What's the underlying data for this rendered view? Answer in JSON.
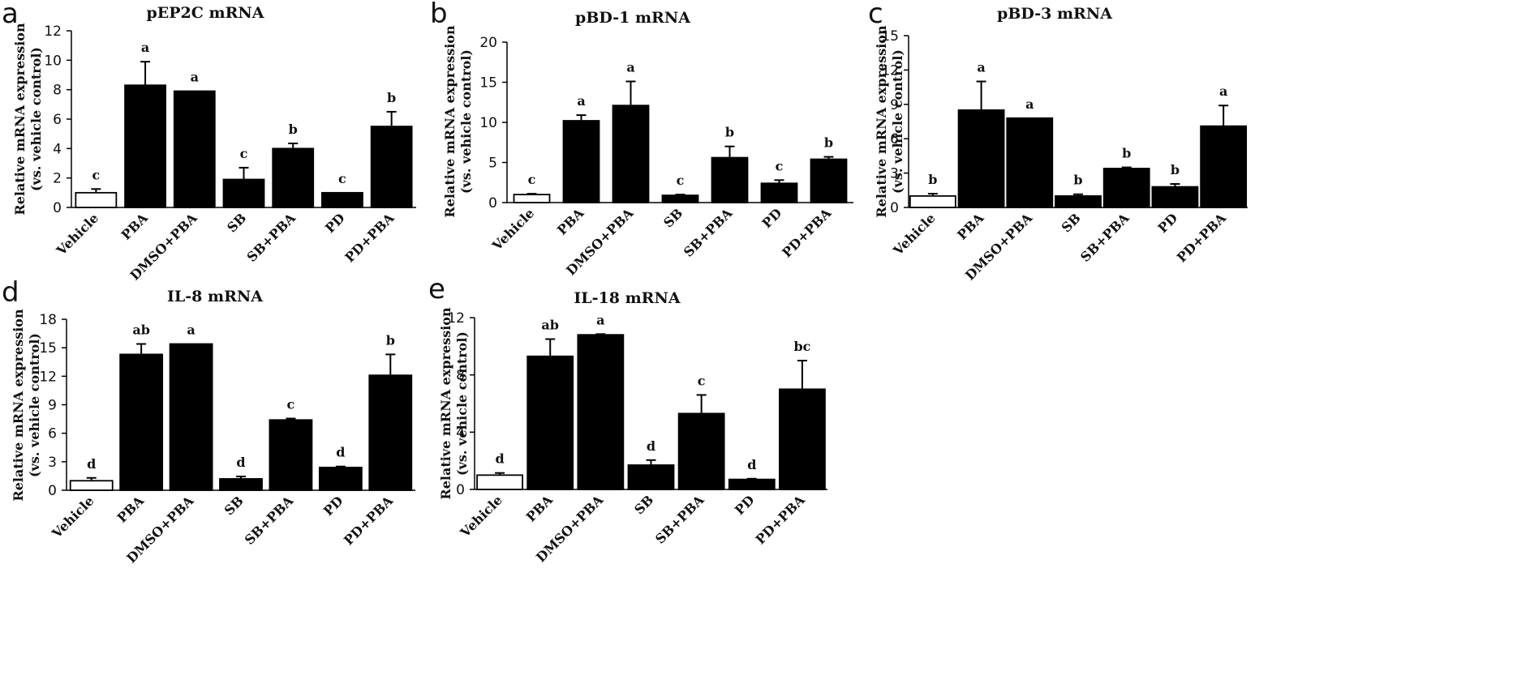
{
  "chart_data": [
    {
      "panel": "a",
      "type": "bar",
      "title": "pEP2C mRNA",
      "ylabel_line1": "Relative mRNA expression",
      "ylabel_line2": "(vs.  vehicle control)",
      "categories": [
        "Vehicle",
        "PBA",
        "DMSO+PBA",
        "SB",
        "SB+PBA",
        "PD",
        "PD+PBA"
      ],
      "values": [
        1.0,
        8.3,
        7.9,
        1.9,
        4.0,
        1.0,
        5.5
      ],
      "errors": [
        0.25,
        1.6,
        0.0,
        0.8,
        0.35,
        0.0,
        1.0
      ],
      "significance": [
        "c",
        "a",
        "a",
        "c",
        "b",
        "c",
        "b"
      ],
      "fills": [
        "#ffffff",
        "#000000",
        "#000000",
        "#000000",
        "#000000",
        "#000000",
        "#000000"
      ],
      "ylim": [
        0,
        12
      ],
      "yticks": [
        0,
        2,
        4,
        6,
        8,
        10,
        12
      ],
      "ytick_labels": [
        "0",
        "2",
        "4",
        "6",
        "8",
        "10",
        "12"
      ]
    },
    {
      "panel": "b",
      "type": "bar",
      "title": "pBD-1 mRNA",
      "ylabel_line1": "Relative mRNA expression",
      "ylabel_line2": "(vs. vehicle control)",
      "categories": [
        "Vehicle",
        "PBA",
        "DMSO+PBA",
        "SB",
        "SB+PBA",
        "PD",
        "PD+PBA"
      ],
      "values": [
        1.0,
        10.2,
        12.1,
        0.9,
        5.6,
        2.4,
        5.4
      ],
      "errors": [
        0.1,
        0.7,
        3.0,
        0.1,
        1.4,
        0.4,
        0.3
      ],
      "significance": [
        "c",
        "a",
        "a",
        "c",
        "b",
        "c",
        "b"
      ],
      "fills": [
        "#ffffff",
        "#000000",
        "#000000",
        "#000000",
        "#000000",
        "#000000",
        "#000000"
      ],
      "ylim": [
        0,
        20
      ],
      "yticks": [
        0,
        5,
        10,
        15,
        20
      ],
      "ytick_labels": [
        "0",
        "5",
        "10",
        "15",
        "20"
      ]
    },
    {
      "panel": "c",
      "type": "bar",
      "title": "pBD-3 mRNA",
      "ylabel_line1": "Relative mRNA expression",
      "ylabel_line2": "(vs. vehicle control)",
      "categories": [
        "Vehicle",
        "PBA",
        "DMSO+PBA",
        "SB",
        "SB+PBA",
        "PD",
        "PD+PBA"
      ],
      "values": [
        1.0,
        8.5,
        7.8,
        1.0,
        3.4,
        1.8,
        7.1
      ],
      "errors": [
        0.2,
        2.5,
        0.0,
        0.15,
        0.1,
        0.25,
        1.8
      ],
      "significance": [
        "b",
        "a",
        "a",
        "b",
        "b",
        "b",
        "a"
      ],
      "fills": [
        "#ffffff",
        "#000000",
        "#000000",
        "#000000",
        "#000000",
        "#000000",
        "#000000"
      ],
      "ylim": [
        0,
        15
      ],
      "yticks": [
        0,
        3,
        6,
        9,
        12,
        15
      ],
      "ytick_labels": [
        "0",
        "3",
        "6",
        "9",
        "12",
        "15"
      ]
    },
    {
      "panel": "d",
      "type": "bar",
      "title": "IL-8 mRNA",
      "ylabel_line1": "Relative mRNA expression",
      "ylabel_line2": "(vs. vehicle control)",
      "categories": [
        "Vehicle",
        "PBA",
        "DMSO+PBA",
        "SB",
        "SB+PBA",
        "PD",
        "PD+PBA"
      ],
      "values": [
        1.0,
        14.3,
        15.4,
        1.2,
        7.4,
        2.4,
        12.1
      ],
      "errors": [
        0.3,
        1.1,
        0.0,
        0.25,
        0.15,
        0.1,
        2.2
      ],
      "significance": [
        "d",
        "ab",
        "a",
        "d",
        "c",
        "d",
        "b"
      ],
      "fills": [
        "#ffffff",
        "#000000",
        "#000000",
        "#000000",
        "#000000",
        "#000000",
        "#000000"
      ],
      "ylim": [
        0,
        18
      ],
      "yticks": [
        0,
        3,
        6,
        9,
        12,
        15,
        18
      ],
      "ytick_labels": [
        "0",
        "3",
        "6",
        "9",
        "12",
        "15",
        "18"
      ]
    },
    {
      "panel": "e",
      "type": "bar",
      "title": "IL-18 mRNA",
      "ylabel_line1": "Relative mRNA expression",
      "ylabel_line2": "(vs. vehicle control)",
      "categories": [
        "Vehicle",
        "PBA",
        "DMSO+PBA",
        "SB",
        "SB+PBA",
        "PD",
        "PD+PBA"
      ],
      "values": [
        1.0,
        9.3,
        10.8,
        1.7,
        5.3,
        0.7,
        7.0
      ],
      "errors": [
        0.15,
        1.2,
        0.05,
        0.35,
        1.3,
        0.05,
        2.0
      ],
      "significance": [
        "d",
        "ab",
        "a",
        "d",
        "c",
        "d",
        "bc"
      ],
      "fills": [
        "#ffffff",
        "#000000",
        "#000000",
        "#000000",
        "#000000",
        "#000000",
        "#000000"
      ],
      "ylim": [
        0,
        12
      ],
      "yticks": [
        0,
        4,
        8,
        12
      ],
      "ytick_labels": [
        "0",
        "4",
        "8",
        "12"
      ]
    }
  ]
}
